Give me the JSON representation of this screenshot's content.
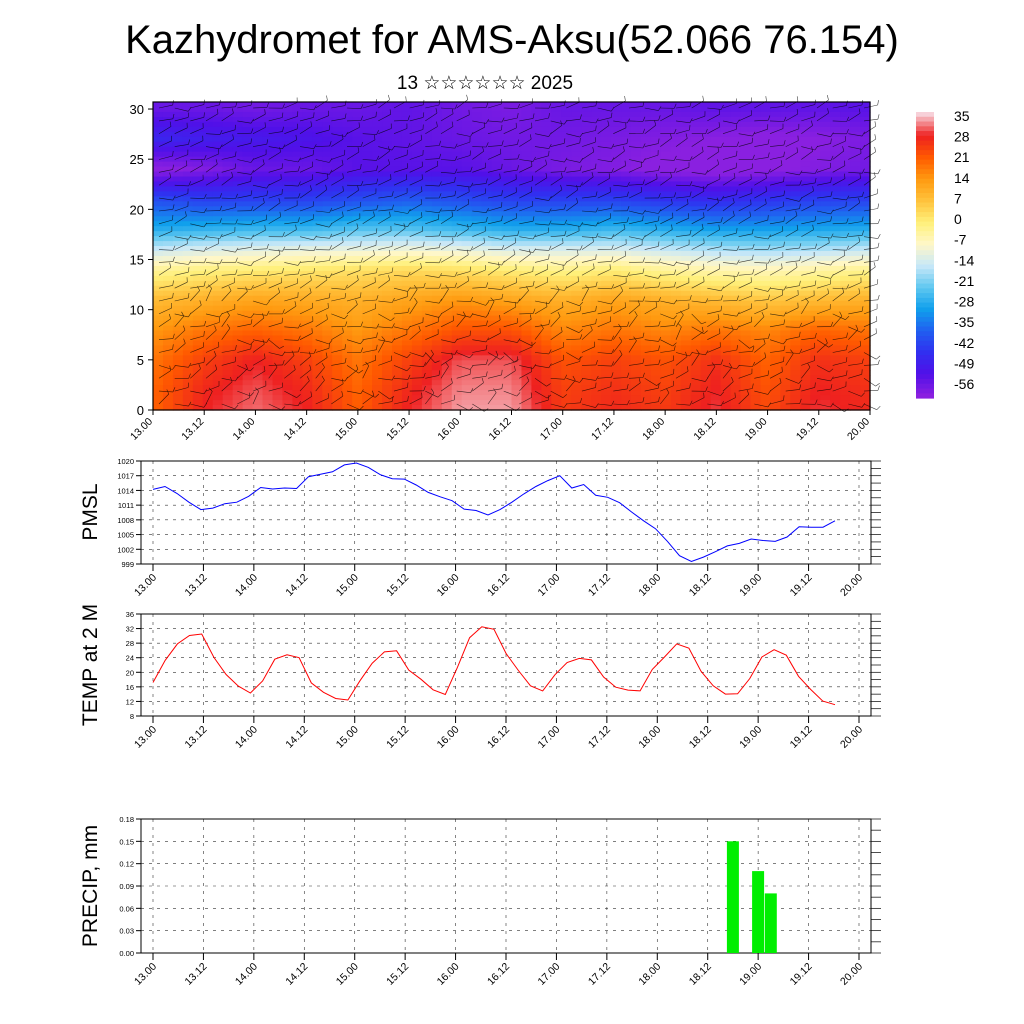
{
  "header": {
    "title": "Kazhydromet for AMS-Aksu(52.066 76.154)",
    "subtitle": "13 ☆☆☆☆☆☆ 2025"
  },
  "chart_data": [
    {
      "type": "heatmap",
      "name": "temperature-wind-cross-section",
      "title": "",
      "xlabel": "",
      "ylabel": "",
      "x_ticks": [
        "13.00",
        "13.12",
        "14.00",
        "14.12",
        "15.00",
        "15.12",
        "16.00",
        "16.12",
        "17.00",
        "17.12",
        "18.00",
        "18.12",
        "19.00",
        "19.12",
        "20.00"
      ],
      "y_ticks": [
        "0",
        "5",
        "10",
        "15",
        "20",
        "25",
        "30"
      ],
      "ylim": [
        0,
        30.7
      ],
      "overlay": "wind barbs",
      "colorbar": {
        "labels": [
          "35",
          "28",
          "21",
          "14",
          "7",
          "0",
          "-7",
          "-14",
          "-21",
          "-28",
          "-35",
          "-42",
          "-49",
          "-56"
        ],
        "colors": [
          "#f7d0d8",
          "#ee2020",
          "#ff5a00",
          "#ff9a10",
          "#ffc23c",
          "#fff07a",
          "#fff7c8",
          "#c8e8f8",
          "#60c8f0",
          "#10a0ec",
          "#2060f0",
          "#3030f0",
          "#5010e8",
          "#8a20e0"
        ]
      },
      "rows": [
        {
          "y": 30,
          "values": [
            -52,
            -52,
            -53,
            -52,
            -52,
            -51,
            -53,
            -54,
            -52,
            -52,
            -52,
            -51,
            -51,
            -51,
            -50
          ]
        },
        {
          "y": 27,
          "values": [
            -44,
            -46,
            -47,
            -48,
            -50,
            -51,
            -52,
            -53,
            -53,
            -54,
            -55,
            -56,
            -57,
            -56,
            -54
          ]
        },
        {
          "y": 24,
          "values": [
            -57,
            -55,
            -52,
            -52,
            -50,
            -50,
            -50,
            -52,
            -54,
            -55,
            -57,
            -58,
            -57,
            -55,
            -53
          ]
        },
        {
          "y": 21,
          "values": [
            -38,
            -40,
            -40,
            -40,
            -38,
            -36,
            -38,
            -40,
            -40,
            -40,
            -42,
            -44,
            -42,
            -40,
            -40
          ]
        },
        {
          "y": 18,
          "values": [
            -26,
            -25,
            -24,
            -24,
            -22,
            -22,
            -24,
            -26,
            -26,
            -24,
            -26,
            -28,
            -28,
            -27,
            -26
          ]
        },
        {
          "y": 16,
          "values": [
            -14,
            -12,
            -11,
            -10,
            -10,
            -9,
            -10,
            -12,
            -12,
            -12,
            -14,
            -16,
            -17,
            -16,
            -14
          ]
        },
        {
          "y": 14,
          "values": [
            -3,
            -1,
            0,
            1,
            2,
            3,
            2,
            0,
            -2,
            0,
            -3,
            -5,
            -6,
            -4,
            -2
          ]
        },
        {
          "y": 11,
          "values": [
            8,
            10,
            12,
            11,
            10,
            12,
            14,
            12,
            10,
            12,
            10,
            8,
            6,
            8,
            10
          ]
        },
        {
          "y": 8,
          "values": [
            14,
            18,
            20,
            18,
            14,
            18,
            22,
            22,
            16,
            18,
            16,
            18,
            16,
            20,
            18
          ]
        },
        {
          "y": 5,
          "values": [
            18,
            24,
            28,
            24,
            18,
            24,
            30,
            30,
            22,
            24,
            22,
            26,
            20,
            26,
            24
          ]
        },
        {
          "y": 2,
          "values": [
            20,
            27,
            30,
            27,
            20,
            27,
            32,
            32,
            24,
            26,
            24,
            28,
            22,
            28,
            26
          ]
        },
        {
          "y": 0,
          "values": [
            20,
            28,
            31,
            28,
            21,
            28,
            33,
            33,
            25,
            27,
            25,
            29,
            23,
            29,
            27
          ]
        }
      ]
    },
    {
      "type": "line",
      "name": "pmsl",
      "ylabel": "PMSL",
      "ylim": [
        999,
        1020
      ],
      "y_ticks": [
        "1020",
        "1017",
        "1014",
        "1011",
        "1008",
        "1005",
        "1002",
        "999"
      ],
      "x_ticks": [
        "13.00",
        "13.12",
        "14.00",
        "14.12",
        "15.00",
        "15.12",
        "16.00",
        "16.12",
        "17.00",
        "17.12",
        "18.00",
        "18.12",
        "19.00",
        "19.12",
        "20.00"
      ],
      "series": [
        {
          "color": "#0000ff",
          "values": [
            1014.2,
            1014.8,
            1013.4,
            1011.6,
            1010.1,
            1010.4,
            1011.3,
            1011.6,
            1012.8,
            1014.6,
            1014.3,
            1014.5,
            1014.4,
            1016.8,
            1017.3,
            1017.8,
            1019.2,
            1019.6,
            1018.7,
            1017.2,
            1016.4,
            1016.3,
            1015.1,
            1013.6,
            1012.7,
            1011.9,
            1010.2,
            1009.9,
            1009.0,
            1010.1,
            1011.6,
            1013.3,
            1014.8,
            1016.0,
            1017.0,
            1014.5,
            1015.2,
            1013.0,
            1012.6,
            1011.5,
            1009.6,
            1007.8,
            1006.2,
            1003.6,
            1000.7,
            999.5,
            1000.4,
            1001.5,
            1002.7,
            1003.2,
            1004.1,
            1003.8,
            1003.6,
            1004.5,
            1006.6,
            1006.5,
            1006.5,
            1007.8
          ]
        }
      ]
    },
    {
      "type": "line",
      "name": "temp-2m",
      "ylabel": "TEMP at 2 M",
      "ylim": [
        8,
        36
      ],
      "y_ticks": [
        "36",
        "32",
        "28",
        "24",
        "20",
        "16",
        "12",
        "8"
      ],
      "x_ticks": [
        "13.00",
        "13.12",
        "14.00",
        "14.12",
        "15.00",
        "15.12",
        "16.00",
        "16.12",
        "17.00",
        "17.12",
        "18.00",
        "18.12",
        "19.00",
        "19.12",
        "20.00"
      ],
      "series": [
        {
          "color": "#ff0000",
          "values": [
            17.2,
            23.3,
            27.8,
            30.1,
            30.5,
            24.1,
            19.4,
            16.2,
            14.3,
            17.6,
            23.6,
            24.8,
            24.0,
            17.1,
            14.5,
            12.8,
            12.4,
            17.7,
            22.5,
            25.6,
            25.9,
            20.6,
            18.1,
            15.2,
            13.9,
            21.4,
            29.5,
            32.5,
            31.8,
            25.1,
            20.5,
            16.3,
            14.9,
            19.3,
            22.7,
            23.8,
            23.4,
            18.7,
            15.9,
            15.1,
            14.9,
            20.8,
            24.2,
            27.8,
            26.6,
            20.3,
            16.3,
            14.0,
            14.1,
            18.3,
            24.2,
            26.2,
            24.7,
            18.9,
            15.3,
            12.1,
            11.1
          ]
        }
      ]
    },
    {
      "type": "bar",
      "name": "precip",
      "ylabel": "PRECIP, mm",
      "ylim": [
        0,
        0.18
      ],
      "y_ticks": [
        "0.18",
        "0.15",
        "0.12",
        "0.09",
        "0.06",
        "0.03",
        "0.00"
      ],
      "x_ticks": [
        "13.00",
        "13.12",
        "14.00",
        "14.12",
        "15.00",
        "15.12",
        "16.00",
        "16.12",
        "17.00",
        "17.12",
        "18.00",
        "18.12",
        "19.00",
        "19.12",
        "20.00"
      ],
      "bar_color": "#00ee00",
      "bars": [
        {
          "x": "18.18",
          "value": 0.15
        },
        {
          "x": "19.00",
          "value": 0.11
        },
        {
          "x": "19.03",
          "value": 0.08
        }
      ]
    }
  ]
}
